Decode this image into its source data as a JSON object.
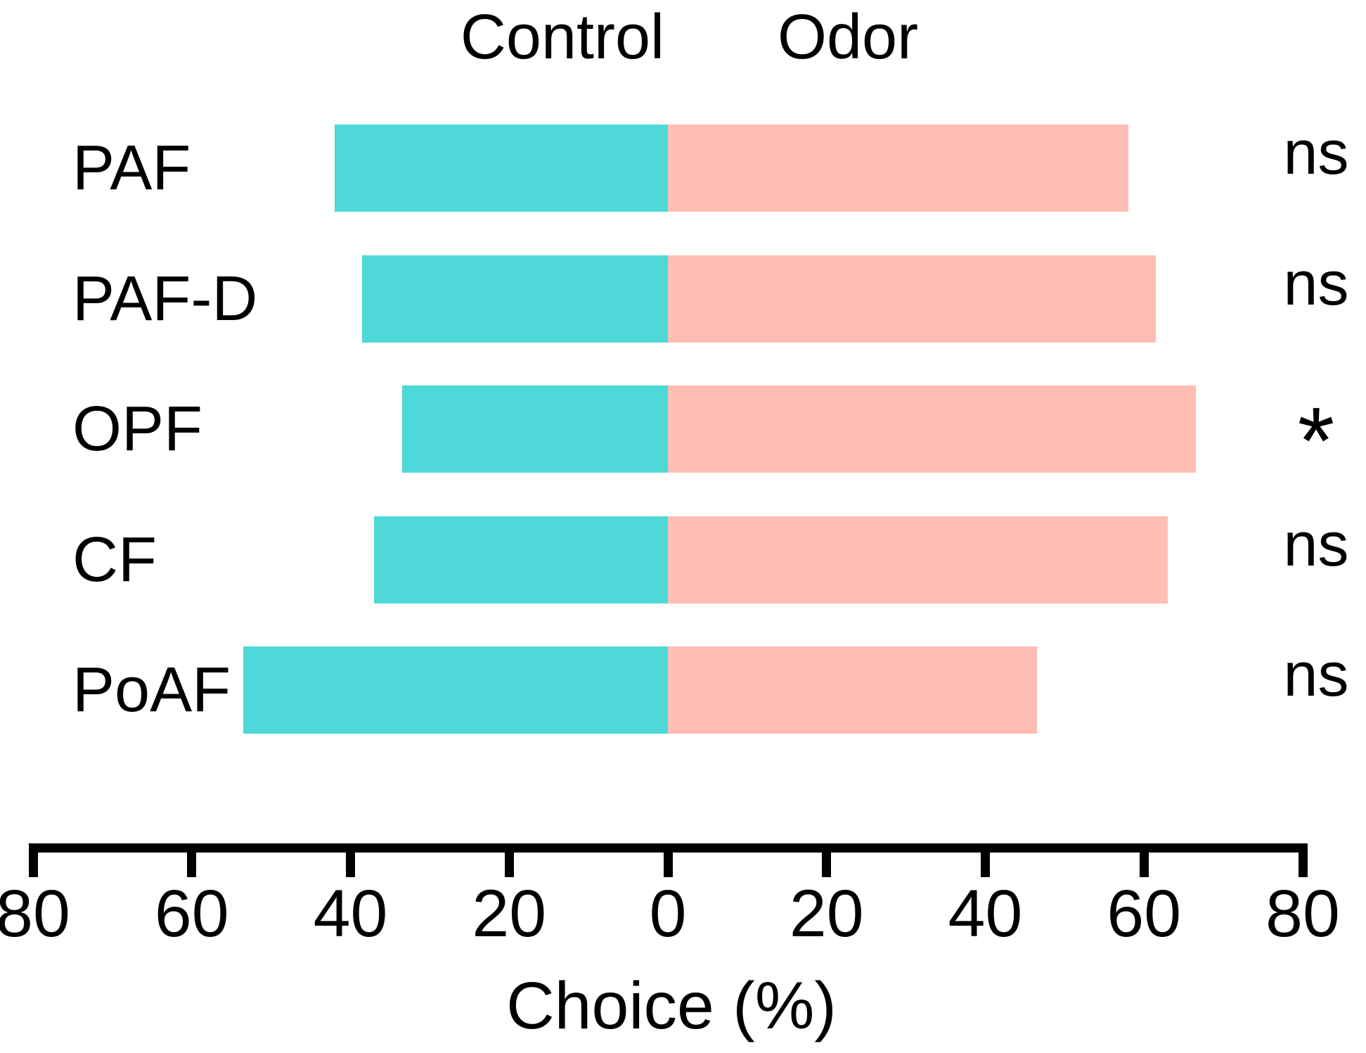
{
  "chart_data": {
    "type": "bar",
    "subtype": "diverging-horizontal-stacked",
    "title": "Choice (%)",
    "categories": [
      "PAF",
      "PAF-D",
      "OPF",
      "CF",
      "PoAF"
    ],
    "series": [
      {
        "name": "Control",
        "direction": "left",
        "color": "#4FD8D8",
        "values": [
          42,
          38.5,
          33.5,
          37,
          53.5
        ]
      },
      {
        "name": "Odor",
        "direction": "right",
        "color": "#FFBDB3",
        "values": [
          58,
          61.5,
          66.5,
          63,
          46.5
        ]
      }
    ],
    "significance": [
      "ns",
      "ns",
      "*",
      "ns",
      "ns"
    ],
    "legend": {
      "control": "Control",
      "odor": "Odor"
    },
    "xlabel": "Choice (%)",
    "axis": {
      "min": -80,
      "max": 80,
      "ticks": [
        -80,
        -60,
        -40,
        -20,
        0,
        20,
        40,
        60,
        80
      ],
      "tick_labels": [
        "80",
        "60",
        "40",
        "20",
        "0",
        "20",
        "40",
        "60",
        "80"
      ],
      "grid": false,
      "legend_position": "top"
    }
  },
  "colors": {
    "control_bar": "#4FD8D8",
    "odor_bar": "#FFBDB3",
    "axis": "#000000",
    "background": "#FFFFFF",
    "text": "#000000"
  }
}
